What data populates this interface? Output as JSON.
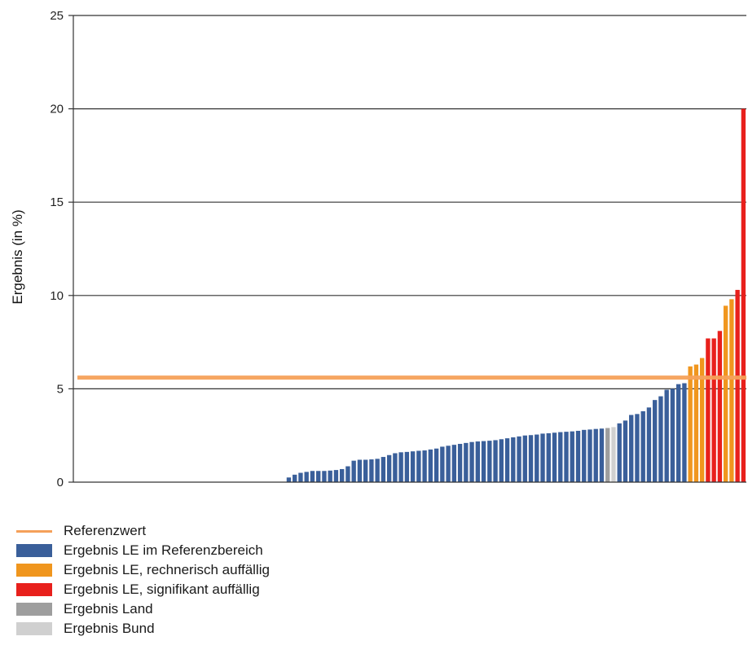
{
  "chart_data": {
    "type": "bar",
    "ylabel": "Ergebnis (in %)",
    "ylim": [
      0,
      25
    ],
    "yticks": [
      0,
      5,
      10,
      15,
      20,
      25
    ],
    "grid": "horizontal",
    "reference_value": 5.6,
    "series": [
      {
        "name": "Ergebnis LE im Referenzbereich",
        "color": "#3a5f9a",
        "values": [
          0,
          0,
          0,
          0,
          0,
          0,
          0,
          0,
          0,
          0,
          0,
          0,
          0,
          0,
          0,
          0,
          0,
          0,
          0,
          0,
          0,
          0,
          0,
          0,
          0,
          0,
          0,
          0,
          0,
          0,
          0,
          0,
          0,
          0,
          0,
          0,
          0.25,
          0.4,
          0.5,
          0.55,
          0.6,
          0.6,
          0.6,
          0.62,
          0.65,
          0.7,
          0.85,
          1.15,
          1.2,
          1.2,
          1.22,
          1.25,
          1.35,
          1.45,
          1.55,
          1.6,
          1.62,
          1.65,
          1.68,
          1.7,
          1.75,
          1.8,
          1.9,
          1.95,
          2.0,
          2.05,
          2.1,
          2.15,
          2.18,
          2.2,
          2.22,
          2.25,
          2.3,
          2.35,
          2.4,
          2.45,
          2.5,
          2.52,
          2.55,
          2.6,
          2.62,
          2.65,
          2.68,
          2.7,
          2.72,
          2.75,
          2.8,
          2.82,
          2.85,
          2.87,
          3.15,
          3.3,
          3.6,
          3.65,
          3.8,
          4.0,
          4.4,
          4.6,
          4.95,
          5.0,
          5.25,
          5.3
        ]
      },
      {
        "name": "Ergebnis LE, rechnerisch auffällig",
        "color": "#f0961e",
        "values": [
          6.2,
          6.3,
          6.65,
          9.45,
          9.8
        ]
      },
      {
        "name": "Ergebnis LE, signifikant auffällig",
        "color": "#e8201c",
        "values": [
          7.7,
          7.7,
          8.1,
          10.3,
          20.0
        ]
      },
      {
        "name": "Ergebnis Land",
        "color": "#9e9e9e",
        "values": [
          2.9
        ]
      },
      {
        "name": "Ergebnis Bund",
        "color": "#d0d0d0",
        "values": [
          2.95
        ]
      }
    ],
    "bars": [
      {
        "v": 0,
        "s": 0
      },
      {
        "v": 0,
        "s": 0
      },
      {
        "v": 0,
        "s": 0
      },
      {
        "v": 0,
        "s": 0
      },
      {
        "v": 0,
        "s": 0
      },
      {
        "v": 0,
        "s": 0
      },
      {
        "v": 0,
        "s": 0
      },
      {
        "v": 0,
        "s": 0
      },
      {
        "v": 0,
        "s": 0
      },
      {
        "v": 0,
        "s": 0
      },
      {
        "v": 0,
        "s": 0
      },
      {
        "v": 0,
        "s": 0
      },
      {
        "v": 0,
        "s": 0
      },
      {
        "v": 0,
        "s": 0
      },
      {
        "v": 0,
        "s": 0
      },
      {
        "v": 0,
        "s": 0
      },
      {
        "v": 0,
        "s": 0
      },
      {
        "v": 0,
        "s": 0
      },
      {
        "v": 0,
        "s": 0
      },
      {
        "v": 0,
        "s": 0
      },
      {
        "v": 0,
        "s": 0
      },
      {
        "v": 0,
        "s": 0
      },
      {
        "v": 0,
        "s": 0
      },
      {
        "v": 0,
        "s": 0
      },
      {
        "v": 0,
        "s": 0
      },
      {
        "v": 0,
        "s": 0
      },
      {
        "v": 0,
        "s": 0
      },
      {
        "v": 0,
        "s": 0
      },
      {
        "v": 0,
        "s": 0
      },
      {
        "v": 0,
        "s": 0
      },
      {
        "v": 0,
        "s": 0
      },
      {
        "v": 0,
        "s": 0
      },
      {
        "v": 0,
        "s": 0
      },
      {
        "v": 0,
        "s": 0
      },
      {
        "v": 0,
        "s": 0
      },
      {
        "v": 0,
        "s": 0
      },
      {
        "v": 0.25,
        "s": 0
      },
      {
        "v": 0.4,
        "s": 0
      },
      {
        "v": 0.5,
        "s": 0
      },
      {
        "v": 0.55,
        "s": 0
      },
      {
        "v": 0.6,
        "s": 0
      },
      {
        "v": 0.6,
        "s": 0
      },
      {
        "v": 0.6,
        "s": 0
      },
      {
        "v": 0.62,
        "s": 0
      },
      {
        "v": 0.65,
        "s": 0
      },
      {
        "v": 0.7,
        "s": 0
      },
      {
        "v": 0.85,
        "s": 0
      },
      {
        "v": 1.15,
        "s": 0
      },
      {
        "v": 1.2,
        "s": 0
      },
      {
        "v": 1.2,
        "s": 0
      },
      {
        "v": 1.22,
        "s": 0
      },
      {
        "v": 1.25,
        "s": 0
      },
      {
        "v": 1.35,
        "s": 0
      },
      {
        "v": 1.45,
        "s": 0
      },
      {
        "v": 1.55,
        "s": 0
      },
      {
        "v": 1.6,
        "s": 0
      },
      {
        "v": 1.62,
        "s": 0
      },
      {
        "v": 1.65,
        "s": 0
      },
      {
        "v": 1.68,
        "s": 0
      },
      {
        "v": 1.7,
        "s": 0
      },
      {
        "v": 1.75,
        "s": 0
      },
      {
        "v": 1.8,
        "s": 0
      },
      {
        "v": 1.9,
        "s": 0
      },
      {
        "v": 1.95,
        "s": 0
      },
      {
        "v": 2.0,
        "s": 0
      },
      {
        "v": 2.05,
        "s": 0
      },
      {
        "v": 2.1,
        "s": 0
      },
      {
        "v": 2.15,
        "s": 0
      },
      {
        "v": 2.18,
        "s": 0
      },
      {
        "v": 2.2,
        "s": 0
      },
      {
        "v": 2.22,
        "s": 0
      },
      {
        "v": 2.25,
        "s": 0
      },
      {
        "v": 2.3,
        "s": 0
      },
      {
        "v": 2.35,
        "s": 0
      },
      {
        "v": 2.4,
        "s": 0
      },
      {
        "v": 2.45,
        "s": 0
      },
      {
        "v": 2.5,
        "s": 0
      },
      {
        "v": 2.52,
        "s": 0
      },
      {
        "v": 2.55,
        "s": 0
      },
      {
        "v": 2.6,
        "s": 0
      },
      {
        "v": 2.62,
        "s": 0
      },
      {
        "v": 2.65,
        "s": 0
      },
      {
        "v": 2.68,
        "s": 0
      },
      {
        "v": 2.7,
        "s": 0
      },
      {
        "v": 2.72,
        "s": 0
      },
      {
        "v": 2.75,
        "s": 0
      },
      {
        "v": 2.8,
        "s": 0
      },
      {
        "v": 2.82,
        "s": 0
      },
      {
        "v": 2.85,
        "s": 0
      },
      {
        "v": 2.87,
        "s": 0
      },
      {
        "v": 2.9,
        "s": 3
      },
      {
        "v": 2.95,
        "s": 4
      },
      {
        "v": 3.15,
        "s": 0
      },
      {
        "v": 3.3,
        "s": 0
      },
      {
        "v": 3.6,
        "s": 0
      },
      {
        "v": 3.65,
        "s": 0
      },
      {
        "v": 3.8,
        "s": 0
      },
      {
        "v": 4.0,
        "s": 0
      },
      {
        "v": 4.4,
        "s": 0
      },
      {
        "v": 4.6,
        "s": 0
      },
      {
        "v": 4.95,
        "s": 0
      },
      {
        "v": 5.0,
        "s": 0
      },
      {
        "v": 5.25,
        "s": 0
      },
      {
        "v": 5.3,
        "s": 0
      },
      {
        "v": 6.2,
        "s": 1
      },
      {
        "v": 6.3,
        "s": 1
      },
      {
        "v": 6.65,
        "s": 1
      },
      {
        "v": 7.7,
        "s": 2
      },
      {
        "v": 7.7,
        "s": 2
      },
      {
        "v": 8.1,
        "s": 2
      },
      {
        "v": 9.45,
        "s": 1
      },
      {
        "v": 9.8,
        "s": 1
      },
      {
        "v": 10.3,
        "s": 2
      },
      {
        "v": 20.0,
        "s": 2
      }
    ]
  },
  "legend": {
    "items": [
      {
        "label": "Referenzwert",
        "color": "#f5a15a",
        "kind": "line"
      },
      {
        "label": "Ergebnis LE im Referenzbereich",
        "color": "#3a5f9a",
        "kind": "box"
      },
      {
        "label": "Ergebnis LE, rechnerisch auffällig",
        "color": "#f0961e",
        "kind": "box"
      },
      {
        "label": "Ergebnis LE, signifikant auffällig",
        "color": "#e8201c",
        "kind": "box"
      },
      {
        "label": "Ergebnis Land",
        "color": "#9e9e9e",
        "kind": "box"
      },
      {
        "label": "Ergebnis Bund",
        "color": "#d0d0d0",
        "kind": "box"
      }
    ]
  }
}
